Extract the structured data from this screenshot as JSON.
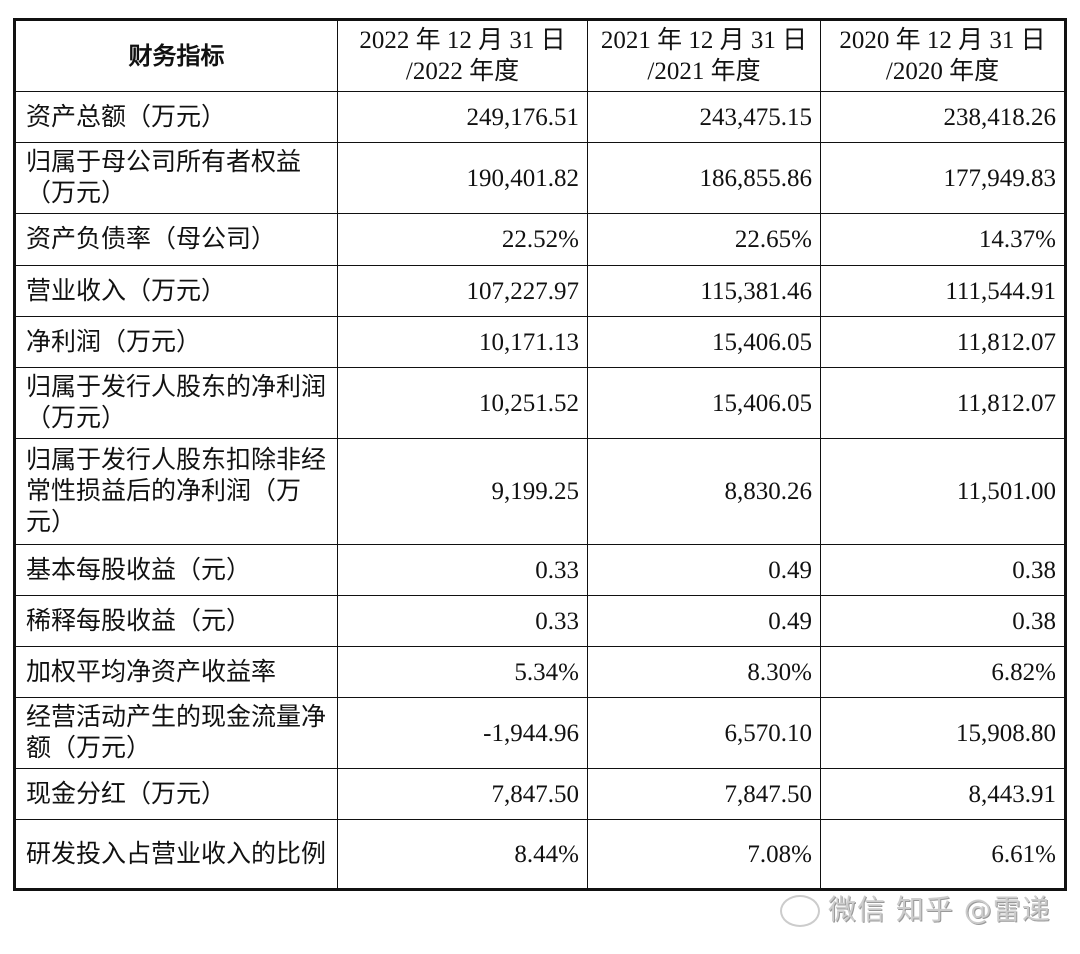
{
  "header": [
    "财务指标",
    "2022年 12月 31日\n/2022年度",
    "2021年 12月 31日\n/2021年度",
    "2020年 12月 31日\n/2020年度"
  ],
  "header_lines": [
    [
      "2022 年 12 月 31 日",
      "/2022 年度"
    ],
    [
      "2021 年 12 月 31 日",
      "/2021 年度"
    ],
    [
      "2020 年 12 月 31 日",
      "/2020 年度"
    ]
  ],
  "rows": [
    {
      "label": "资产总额（万元）",
      "values": [
        "249,176.51",
        "243,475.15",
        "238,418.26"
      ]
    },
    {
      "label": "归属于母公司所有者权益（万元）",
      "values": [
        "190,401.82",
        "186,855.86",
        "177,949.83"
      ]
    },
    {
      "label": "资产负债率（母公司）",
      "values": [
        "22.52%",
        "22.65%",
        "14.37%"
      ]
    },
    {
      "label": "营业收入（万元）",
      "values": [
        "107,227.97",
        "115,381.46",
        "111,544.91"
      ]
    },
    {
      "label": "净利润（万元）",
      "values": [
        "10,171.13",
        "15,406.05",
        "11,812.07"
      ]
    },
    {
      "label": "归属于发行人股东的净利润（万元）",
      "values": [
        "10,251.52",
        "15,406.05",
        "11,812.07"
      ]
    },
    {
      "label": "归属于发行人股东扣除非经常性损益后的净利润（万元）",
      "values": [
        "9,199.25",
        "8,830.26",
        "11,501.00"
      ]
    },
    {
      "label": "基本每股收益（元）",
      "values": [
        "0.33",
        "0.49",
        "0.38"
      ]
    },
    {
      "label": "稀释每股收益（元）",
      "values": [
        "0.33",
        "0.49",
        "0.38"
      ]
    },
    {
      "label": "加权平均净资产收益率",
      "values": [
        "5.34%",
        "8.30%",
        "6.82%"
      ]
    },
    {
      "label": "经营活动产生的现金流量净额（万元）",
      "values": [
        "-1,944.96",
        "6,570.10",
        "15,908.80"
      ]
    },
    {
      "label": "现金分红（万元）",
      "values": [
        "7,847.50",
        "7,847.50",
        "8,443.91"
      ]
    },
    {
      "label": "研发投入占营业收入的比例",
      "values": [
        "8.44%",
        "7.08%",
        "6.61%"
      ]
    }
  ],
  "watermark": "微信 知乎 @雷递"
}
